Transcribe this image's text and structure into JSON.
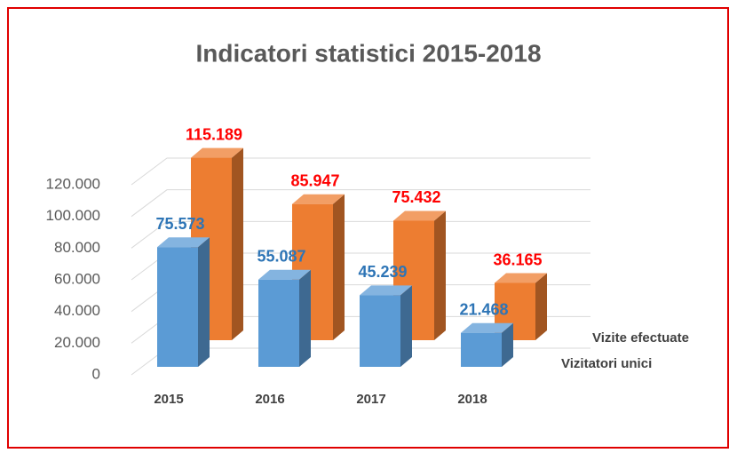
{
  "chart_data": {
    "type": "bar3d",
    "title": "Indicatori statistici 2015-2018",
    "categories": [
      "2015",
      "2016",
      "2017",
      "2018"
    ],
    "series": [
      {
        "name": "Vizitatori unici",
        "color": "#5b9bd5",
        "label_color": "#2e75b6",
        "values": [
          75573,
          55087,
          45239,
          21468
        ],
        "value_labels": [
          "75.573",
          "55.087",
          "45.239",
          "21.468"
        ]
      },
      {
        "name": "Vizite efectuate",
        "color": "#ed7d31",
        "label_color": "#ff0000",
        "values": [
          115189,
          85947,
          75432,
          36165
        ],
        "value_labels": [
          "115.189",
          "85.947",
          "75.432",
          "36.165"
        ]
      }
    ],
    "ylim": [
      0,
      120000
    ],
    "yticks": [
      0,
      {
        "value": 20000,
        "label": "20.000"
      },
      {
        "value": 40000,
        "label": "40.000"
      },
      {
        "value": 60000,
        "label": "60.000"
      },
      {
        "value": 80000,
        "label": "80.000"
      },
      {
        "value": 100000,
        "label": "100.000"
      },
      {
        "value": 120000,
        "label": "120.000"
      }
    ],
    "grid": true
  }
}
